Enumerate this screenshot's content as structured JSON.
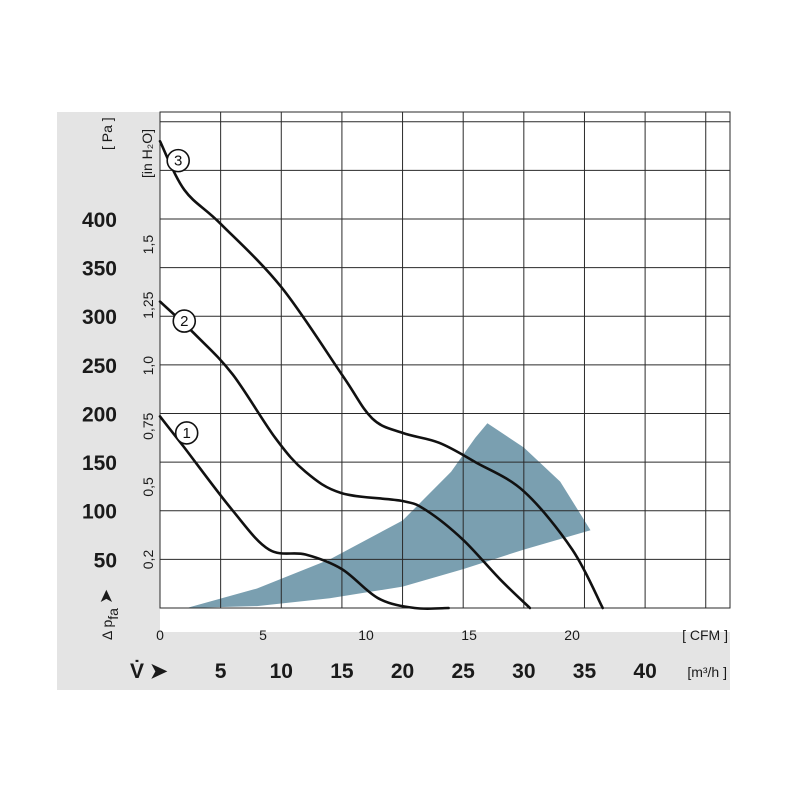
{
  "chart_data": {
    "type": "line",
    "title": "",
    "x_units": {
      "cfm_label": "[ CFM ]",
      "m3h_label": "[m³/h ]",
      "flow_symbol": "V̇ ➤",
      "cfm_ticks": [
        "0",
        "5",
        "10",
        "15",
        "20"
      ],
      "m3h_ticks": [
        "5",
        "10",
        "15",
        "20",
        "25",
        "30",
        "35",
        "40"
      ]
    },
    "y_units": {
      "pa_label": "[ Pa ]",
      "inh2o_label": "[in H₂O]",
      "pressure_symbol": "Δ p",
      "pressure_subscript": "fa",
      "pressure_arrow": "➤",
      "pa_ticks": [
        "50",
        "100",
        "150",
        "200",
        "250",
        "300",
        "350",
        "400"
      ],
      "inh2o_ticks": [
        "0,2",
        "0,5",
        "0,75",
        "1,0",
        "1,25",
        "1,5"
      ]
    },
    "xlim_m3h": [
      0,
      47
    ],
    "ylim_pa": [
      0,
      510
    ],
    "series": [
      {
        "name": "1",
        "x": [
          0,
          2,
          6,
          9,
          12,
          15,
          18,
          21,
          23.8
        ],
        "y": [
          197,
          165,
          100,
          60,
          55,
          40,
          10,
          -20,
          0
        ]
      },
      {
        "name": "2",
        "x": [
          0,
          3,
          6,
          9.5,
          12,
          15,
          20,
          22,
          25,
          28,
          30.5
        ],
        "y": [
          315,
          280,
          240,
          175,
          140,
          118,
          110,
          100,
          70,
          30,
          0
        ]
      },
      {
        "name": "3",
        "x": [
          0,
          2,
          5,
          10,
          15,
          17.5,
          20,
          23,
          26,
          30,
          34,
          36.5
        ],
        "y": [
          480,
          430,
          395,
          330,
          240,
          195,
          180,
          170,
          150,
          120,
          60,
          0
        ]
      }
    ],
    "operating_region": {
      "color": "#7a9fb0",
      "upper": [
        [
          2.2,
          0
        ],
        [
          8,
          20
        ],
        [
          14,
          50
        ],
        [
          20,
          90
        ],
        [
          24,
          140
        ],
        [
          26,
          175
        ],
        [
          27,
          190
        ]
      ],
      "right": [
        [
          27,
          190
        ],
        [
          30,
          165
        ],
        [
          33,
          130
        ],
        [
          35.5,
          80
        ]
      ],
      "lower": [
        [
          35.5,
          80
        ],
        [
          30,
          60
        ],
        [
          25,
          40
        ],
        [
          20,
          22
        ],
        [
          14,
          10
        ],
        [
          8,
          2
        ],
        [
          2.2,
          0
        ]
      ]
    },
    "marker_positions": [
      {
        "label": "1",
        "x": 2.2,
        "y": 180
      },
      {
        "label": "2",
        "x": 2.0,
        "y": 295
      },
      {
        "label": "3",
        "x": 1.5,
        "y": 460
      }
    ]
  },
  "colors": {
    "panel_gray": "#e4e4e4",
    "grid_line": "#2a2a2a",
    "curve": "#111111"
  }
}
